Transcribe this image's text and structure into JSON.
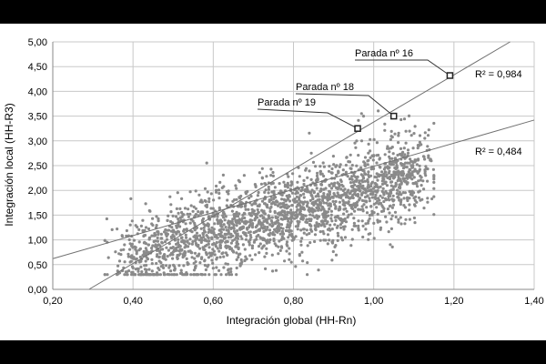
{
  "chart_data": {
    "type": "scatter",
    "title": "",
    "xlabel": "Integración global (HH-Rn)",
    "ylabel": "Integración local (HH-R3)",
    "xlim": [
      0.2,
      1.4
    ],
    "ylim": [
      0.0,
      5.0
    ],
    "x_ticks": [
      "0,20",
      "0,40",
      "0,60",
      "0,80",
      "1,00",
      "1,20",
      "1,40"
    ],
    "y_ticks": [
      "0,00",
      "0,50",
      "1,00",
      "1,50",
      "2,00",
      "2,50",
      "3,00",
      "3,50",
      "4,00",
      "4,50",
      "5,00"
    ],
    "grid": true,
    "colors": {
      "points": "#8a8a8a",
      "lines": "#707070",
      "grid": "#c8c8c8",
      "highlight": "#222222"
    },
    "cloud": {
      "description_points_approx": 2500,
      "x_range": [
        0.33,
        1.15
      ],
      "y_range": [
        0.3,
        3.9
      ]
    },
    "highlighted": [
      {
        "label": "Parada nº 16",
        "x": 1.19,
        "y": 4.32
      },
      {
        "label": "Parada nº 18",
        "x": 1.05,
        "y": 3.5
      },
      {
        "label": "Parada nº 19",
        "x": 0.96,
        "y": 3.25
      }
    ],
    "regression_lines": [
      {
        "r2_label": "R² = 0,984",
        "x0": 0.29,
        "y0": 0.0,
        "x1": 1.34,
        "y1": 5.0
      },
      {
        "r2_label": "R² = 0,484",
        "x0": 0.2,
        "y0": 0.62,
        "x1": 1.4,
        "y1": 3.42
      }
    ]
  }
}
